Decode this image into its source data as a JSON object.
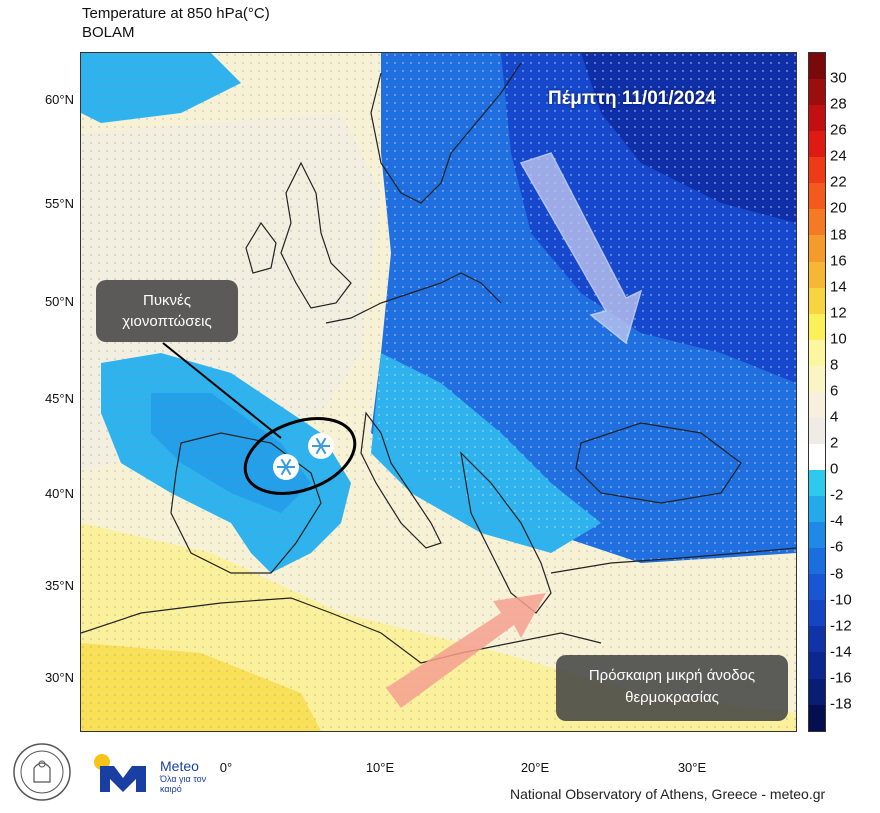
{
  "title": {
    "line1": "Temperature at 850 hPa(°C)",
    "line2": "BOLAM"
  },
  "map": {
    "latitude_labels": [
      "60°N",
      "55°N",
      "50°N",
      "45°N",
      "40°N",
      "35°N",
      "30°N"
    ],
    "longitude_labels": [
      "0°",
      "10°E",
      "20°E",
      "30°E"
    ],
    "date_label": "Πέμπτη 11/01/2024",
    "annotations": {
      "snow_box": "Πυκνές\nχιονοπτώσεις",
      "warm_box": "Πρόσκαιρη μικρή άνοδος\nθερμοκρασίας"
    },
    "arrows": {
      "cold_arrow_color": "#c9ccf2",
      "warm_arrow_color": "#f4a090"
    }
  },
  "colorbar": {
    "ticks": [
      "30",
      "28",
      "26",
      "24",
      "22",
      "20",
      "18",
      "16",
      "14",
      "12",
      "10",
      "8",
      "6",
      "4",
      "2",
      "0",
      "-2",
      "-4",
      "-6",
      "-8",
      "-10",
      "-12",
      "-14",
      "-16",
      "-18"
    ],
    "colors": [
      "#7a0a0a",
      "#9c0d0d",
      "#c21010",
      "#de1a12",
      "#ef3a16",
      "#f45a1c",
      "#f47a24",
      "#f59a2c",
      "#f6b834",
      "#f7d540",
      "#fbef5a",
      "#fdf6a0",
      "#fbf4c4",
      "#f6f0dc",
      "#efece6",
      "#ffffff",
      "#2ec9ee",
      "#24a9ea",
      "#1f8ae6",
      "#1b6ee0",
      "#1956d6",
      "#1544c4",
      "#1034a8",
      "#0c2890",
      "#081e74"
    ]
  },
  "footer": {
    "credit": "National Observatory of Athens, Greece - meteo.gr",
    "logo_word": "Meteo",
    "logo_tagline": "Όλα για τον καιρό"
  }
}
